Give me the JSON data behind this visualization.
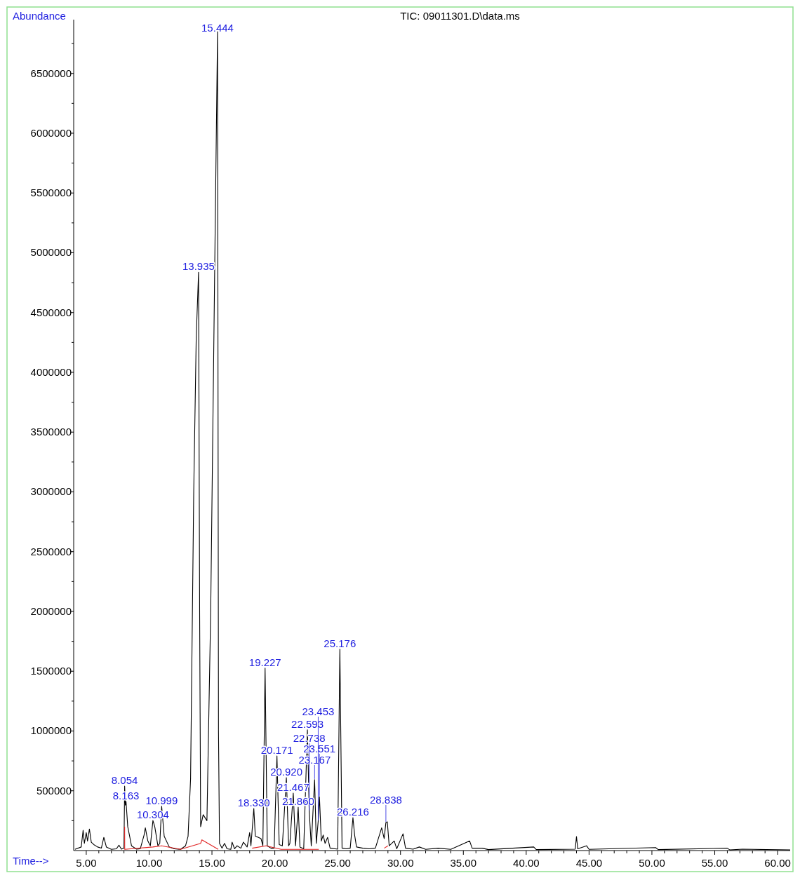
{
  "chart_data": {
    "type": "line",
    "title": "TIC: 09011301.D\\data.ms",
    "xlabel": "Time-->",
    "ylabel": "Abundance",
    "xlim": [
      4.0,
      61.0
    ],
    "ylim": [
      0,
      6950000
    ],
    "xticks": [
      {
        "value": 5,
        "label": "5.00"
      },
      {
        "value": 6,
        "label": null
      },
      {
        "value": 7,
        "label": null
      },
      {
        "value": 8,
        "label": null
      },
      {
        "value": 9,
        "label": null
      },
      {
        "value": 10,
        "label": "10.00"
      },
      {
        "value": 11,
        "label": null
      },
      {
        "value": 12,
        "label": null
      },
      {
        "value": 13,
        "label": null
      },
      {
        "value": 14,
        "label": null
      },
      {
        "value": 15,
        "label": "15.00"
      },
      {
        "value": 16,
        "label": null
      },
      {
        "value": 17,
        "label": null
      },
      {
        "value": 18,
        "label": null
      },
      {
        "value": 19,
        "label": null
      },
      {
        "value": 20,
        "label": "20.00"
      },
      {
        "value": 21,
        "label": null
      },
      {
        "value": 22,
        "label": null
      },
      {
        "value": 23,
        "label": null
      },
      {
        "value": 24,
        "label": null
      },
      {
        "value": 25,
        "label": "25.00"
      },
      {
        "value": 26,
        "label": null
      },
      {
        "value": 27,
        "label": null
      },
      {
        "value": 28,
        "label": null
      },
      {
        "value": 29,
        "label": null
      },
      {
        "value": 30,
        "label": "30.00"
      },
      {
        "value": 31,
        "label": null
      },
      {
        "value": 32,
        "label": null
      },
      {
        "value": 33,
        "label": null
      },
      {
        "value": 34,
        "label": null
      },
      {
        "value": 35,
        "label": "35.00"
      },
      {
        "value": 36,
        "label": null
      },
      {
        "value": 37,
        "label": null
      },
      {
        "value": 38,
        "label": null
      },
      {
        "value": 39,
        "label": null
      },
      {
        "value": 40,
        "label": "40.00"
      },
      {
        "value": 41,
        "label": null
      },
      {
        "value": 42,
        "label": null
      },
      {
        "value": 43,
        "label": null
      },
      {
        "value": 44,
        "label": null
      },
      {
        "value": 45,
        "label": "45.00"
      },
      {
        "value": 46,
        "label": null
      },
      {
        "value": 47,
        "label": null
      },
      {
        "value": 48,
        "label": null
      },
      {
        "value": 49,
        "label": null
      },
      {
        "value": 50,
        "label": "50.00"
      },
      {
        "value": 51,
        "label": null
      },
      {
        "value": 52,
        "label": null
      },
      {
        "value": 53,
        "label": null
      },
      {
        "value": 54,
        "label": null
      },
      {
        "value": 55,
        "label": "55.00"
      },
      {
        "value": 56,
        "label": null
      },
      {
        "value": 57,
        "label": null
      },
      {
        "value": 58,
        "label": null
      },
      {
        "value": 59,
        "label": null
      },
      {
        "value": 60,
        "label": "60.00"
      }
    ],
    "yticks": [
      {
        "value": 250000,
        "label": null
      },
      500000,
      {
        "value": 750000,
        "label": null
      },
      1000000,
      {
        "value": 1250000,
        "label": null
      },
      1500000,
      {
        "value": 1750000,
        "label": null
      },
      2000000,
      {
        "value": 2250000,
        "label": null
      },
      2500000,
      {
        "value": 2750000,
        "label": null
      },
      3000000,
      {
        "value": 3250000,
        "label": null
      },
      3500000,
      {
        "value": 3750000,
        "label": null
      },
      4000000,
      {
        "value": 4250000,
        "label": null
      },
      4500000,
      {
        "value": 4750000,
        "label": null
      },
      5000000,
      {
        "value": 5250000,
        "label": null
      },
      5500000,
      {
        "value": 5750000,
        "label": null
      },
      6000000,
      {
        "value": 6250000,
        "label": null
      },
      6500000,
      {
        "value": 6750000,
        "label": null
      }
    ],
    "grid": false,
    "marker": "none",
    "line_style": "solid",
    "series": [
      {
        "color": "#000000",
        "x": [
          4.1,
          4.6,
          4.75,
          4.85,
          5.0,
          5.1,
          5.25,
          5.4,
          5.6,
          5.9,
          6.2,
          6.4,
          6.6,
          7.0,
          7.4,
          7.6,
          7.8,
          8.0,
          8.054,
          8.11,
          8.163,
          8.3,
          8.6,
          9.0,
          9.3,
          9.6,
          9.7,
          9.9,
          10.1,
          10.304,
          10.45,
          10.7,
          10.85,
          10.999,
          11.2,
          11.6,
          12.0,
          12.5,
          12.9,
          13.1,
          13.3,
          13.55,
          13.75,
          13.935,
          14.02,
          14.1,
          14.3,
          14.6,
          14.9,
          15.2,
          15.444,
          15.52,
          15.6,
          15.8,
          16.0,
          16.2,
          16.5,
          16.6,
          16.8,
          17.0,
          17.3,
          17.5,
          17.8,
          18.0,
          18.1,
          18.33,
          18.45,
          18.7,
          18.9,
          19.05,
          19.227,
          19.4,
          19.7,
          19.95,
          20.171,
          20.35,
          20.6,
          20.92,
          21.1,
          21.2,
          21.467,
          21.65,
          21.86,
          22.0,
          22.3,
          22.593,
          22.738,
          22.9,
          23.167,
          23.3,
          23.453,
          23.551,
          23.7,
          23.85,
          24.0,
          24.2,
          24.4,
          24.8,
          25.0,
          25.176,
          25.35,
          25.7,
          26.0,
          26.216,
          26.35,
          26.5,
          27.0,
          27.5,
          28.0,
          28.5,
          28.7,
          28.838,
          28.95,
          29.1,
          29.5,
          29.7,
          30.2,
          30.4,
          31.0,
          31.5,
          32.0,
          33.0,
          34.0,
          35.5,
          35.7,
          36.5,
          37.0,
          40.6,
          40.8,
          43.9,
          44.0,
          44.1,
          44.8,
          45.0,
          50.3,
          50.5,
          56.0,
          56.2,
          57.2,
          61.0
        ],
        "values": [
          10000,
          30000,
          170000,
          60000,
          150000,
          80000,
          180000,
          70000,
          50000,
          30000,
          20000,
          110000,
          30000,
          10000,
          15000,
          45000,
          12000,
          20000,
          540000,
          380000,
          411000,
          200000,
          40000,
          12000,
          15000,
          130000,
          190000,
          80000,
          40000,
          252000,
          200000,
          40000,
          60000,
          370000,
          120000,
          30000,
          15000,
          10000,
          40000,
          120000,
          600000,
          3000000,
          4300000,
          4837000,
          2000000,
          200000,
          300000,
          250000,
          2000000,
          4700000,
          6850000,
          1000000,
          60000,
          20000,
          60000,
          15000,
          10000,
          70000,
          15000,
          40000,
          20000,
          70000,
          30000,
          150000,
          40000,
          352000,
          120000,
          110000,
          100000,
          40000,
          1526000,
          40000,
          20000,
          20000,
          792000,
          50000,
          40000,
          610000,
          40000,
          60000,
          481000,
          40000,
          364000,
          30000,
          15000,
          1010000,
          330000,
          40000,
          593000,
          60000,
          246000,
          452000,
          80000,
          130000,
          60000,
          110000,
          20000,
          15000,
          12000,
          1685000,
          20000,
          15000,
          20000,
          276000,
          130000,
          30000,
          20000,
          15000,
          20000,
          190000,
          100000,
          235000,
          240000,
          40000,
          80000,
          15000,
          140000,
          20000,
          12000,
          30000,
          10000,
          20000,
          10000,
          80000,
          20000,
          20000,
          8000,
          30000,
          8000,
          12000,
          117000,
          15000,
          40000,
          10000,
          25000,
          8000,
          20000,
          5000,
          12000,
          5000
        ]
      },
      {
        "color": "#e02020",
        "x": [
          8.054,
          8.06,
          10.3,
          11.0,
          12.5,
          14.1,
          14.2,
          15.5,
          16.0,
          18.2,
          19.3,
          20.5,
          23.5,
          24.0,
          28.7,
          29.0
        ],
        "values": [
          200000,
          10000,
          30000,
          40000,
          10000,
          60000,
          90000,
          10000,
          null,
          20000,
          40000,
          10000,
          10000,
          null,
          20000,
          40000
        ]
      }
    ],
    "annotations": [
      {
        "text": "15.444",
        "x": 15.444,
        "y": 6850000
      },
      {
        "text": "13.935",
        "x": 13.935,
        "y": 4837000
      },
      {
        "text": "25.176",
        "x": 25.176,
        "y": 1685000
      },
      {
        "text": "19.227",
        "x": 19.227,
        "y": 1526000
      },
      {
        "text": "22.593",
        "x": 22.593,
        "y": 1010000
      },
      {
        "text": "20.171",
        "x": 20.171,
        "y": 792000
      },
      {
        "text": "20.920",
        "x": 20.92,
        "y": 610000
      },
      {
        "text": "23.167",
        "x": 23.167,
        "y": 593000
      },
      {
        "text": "8.054",
        "x": 8.054,
        "y": 540000
      },
      {
        "text": "21.467",
        "x": 21.467,
        "y": 481000
      },
      {
        "text": "23.551",
        "x": 23.551,
        "y": 452000
      },
      {
        "text": "8.163",
        "x": 8.163,
        "y": 411000
      },
      {
        "text": "10.999",
        "x": 10.999,
        "y": 370000
      },
      {
        "text": "21.860",
        "x": 21.86,
        "y": 364000
      },
      {
        "text": "18.330",
        "x": 18.33,
        "y": 352000
      },
      {
        "text": "22.738",
        "x": 22.738,
        "y": 330000
      },
      {
        "text": "26.216",
        "x": 26.216,
        "y": 276000
      },
      {
        "text": "10.304",
        "x": 10.304,
        "y": 252000
      },
      {
        "text": "23.453",
        "x": 23.453,
        "y": 246000
      },
      {
        "text": "28.838",
        "x": 28.838,
        "y": 235000
      }
    ]
  }
}
